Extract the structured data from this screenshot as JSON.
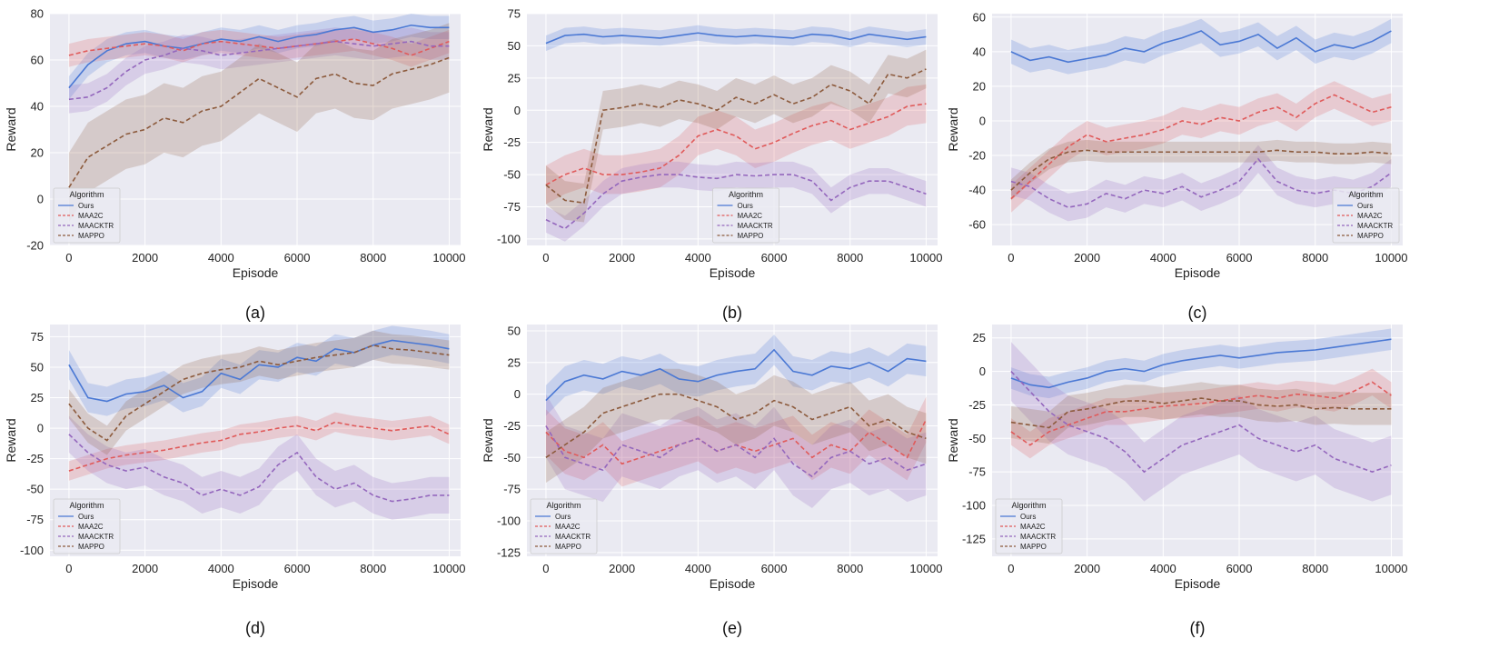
{
  "figure": {
    "panel_labels": [
      "(a)",
      "(b)",
      "(c)",
      "(d)",
      "(e)",
      "(f)"
    ]
  },
  "colors": {
    "Ours": "#4a78d4",
    "MAA2C": "#e05a5a",
    "MAACKTR": "#9467bd",
    "MAPPO": "#8c5a3c",
    "plot_bg": "#eaeaf2",
    "grid": "#ffffff"
  },
  "chart_data": [
    {
      "type": "line",
      "label": "(a)",
      "xlabel": "Episode",
      "ylabel": "Reward",
      "xlim": [
        -500,
        10300
      ],
      "ylim": [
        -20,
        80
      ],
      "xticks": [
        0,
        2000,
        4000,
        6000,
        8000,
        10000
      ],
      "yticks": [
        -20,
        0,
        20,
        40,
        60,
        80
      ],
      "legend": {
        "title": "Algorithm",
        "position": "lower-left"
      },
      "x": [
        0,
        500,
        1000,
        1500,
        2000,
        2500,
        3000,
        3500,
        4000,
        4500,
        5000,
        5500,
        6000,
        6500,
        7000,
        7500,
        8000,
        8500,
        9000,
        9500,
        10000
      ],
      "series": [
        {
          "name": "Ours",
          "style": "solid",
          "band": 5,
          "values": [
            48,
            58,
            64,
            67,
            68,
            66,
            65,
            67,
            69,
            68,
            70,
            68,
            70,
            71,
            73,
            74,
            72,
            73,
            75,
            74,
            74
          ]
        },
        {
          "name": "MAA2C",
          "style": "dashed",
          "band": 5,
          "values": [
            62,
            64,
            65,
            66,
            67,
            66,
            64,
            67,
            68,
            67,
            66,
            65,
            66,
            67,
            68,
            69,
            67,
            65,
            62,
            65,
            68
          ]
        },
        {
          "name": "MAACKTR",
          "style": "dashed",
          "band": 6,
          "values": [
            43,
            44,
            48,
            55,
            60,
            62,
            65,
            64,
            62,
            63,
            64,
            65,
            66,
            67,
            68,
            67,
            66,
            67,
            68,
            66,
            66
          ]
        },
        {
          "name": "MAPPO",
          "style": "dashed",
          "band": 15,
          "values": [
            5,
            18,
            23,
            28,
            30,
            35,
            33,
            38,
            40,
            46,
            52,
            48,
            44,
            52,
            54,
            50,
            49,
            54,
            56,
            58,
            61
          ]
        }
      ]
    },
    {
      "type": "line",
      "label": "(b)",
      "xlabel": "Episode",
      "ylabel": "Reward",
      "xlim": [
        -500,
        10300
      ],
      "ylim": [
        -105,
        75
      ],
      "xticks": [
        0,
        2000,
        4000,
        6000,
        8000,
        10000
      ],
      "yticks": [
        -100,
        -75,
        -50,
        -25,
        0,
        25,
        50,
        75
      ],
      "legend": {
        "title": "Algorithm",
        "position": "lower-center"
      },
      "x": [
        0,
        500,
        1000,
        1500,
        2000,
        2500,
        3000,
        3500,
        4000,
        4500,
        5000,
        5500,
        6000,
        6500,
        7000,
        7500,
        8000,
        8500,
        9000,
        9500,
        10000
      ],
      "series": [
        {
          "name": "Ours",
          "style": "solid",
          "band": 6,
          "values": [
            52,
            58,
            59,
            57,
            58,
            57,
            56,
            58,
            60,
            58,
            57,
            58,
            57,
            56,
            59,
            58,
            55,
            59,
            57,
            55,
            57
          ]
        },
        {
          "name": "MAA2C",
          "style": "dashed",
          "band": 15,
          "values": [
            -58,
            -50,
            -45,
            -50,
            -50,
            -48,
            -45,
            -35,
            -20,
            -15,
            -20,
            -30,
            -25,
            -18,
            -12,
            -8,
            -15,
            -10,
            -5,
            3,
            5
          ]
        },
        {
          "name": "MAACKTR",
          "style": "dashed",
          "band": 10,
          "values": [
            -85,
            -92,
            -80,
            -65,
            -55,
            -52,
            -50,
            -50,
            -52,
            -53,
            -50,
            -51,
            -50,
            -50,
            -55,
            -70,
            -60,
            -55,
            -55,
            -60,
            -65
          ]
        },
        {
          "name": "MAPPO",
          "style": "dashed",
          "band": 15,
          "values": [
            -58,
            -70,
            -72,
            0,
            2,
            5,
            2,
            8,
            5,
            0,
            10,
            5,
            12,
            5,
            10,
            20,
            15,
            5,
            28,
            25,
            32
          ]
        }
      ]
    },
    {
      "type": "line",
      "label": "(c)",
      "xlabel": "Episode",
      "ylabel": "Reward",
      "xlim": [
        -500,
        10300
      ],
      "ylim": [
        -72,
        62
      ],
      "xticks": [
        0,
        2000,
        4000,
        6000,
        8000,
        10000
      ],
      "yticks": [
        -60,
        -40,
        -20,
        0,
        20,
        40,
        60
      ],
      "legend": {
        "title": "Algorithm",
        "position": "lower-right"
      },
      "x": [
        0,
        500,
        1000,
        1500,
        2000,
        2500,
        3000,
        3500,
        4000,
        4500,
        5000,
        5500,
        6000,
        6500,
        7000,
        7500,
        8000,
        8500,
        9000,
        9500,
        10000
      ],
      "series": [
        {
          "name": "Ours",
          "style": "solid",
          "band": 7,
          "values": [
            40,
            35,
            37,
            34,
            36,
            38,
            42,
            40,
            45,
            48,
            52,
            44,
            46,
            50,
            42,
            48,
            40,
            44,
            42,
            46,
            52
          ]
        },
        {
          "name": "MAA2C",
          "style": "dashed",
          "band": 8,
          "values": [
            -45,
            -35,
            -25,
            -15,
            -8,
            -12,
            -10,
            -8,
            -5,
            0,
            -2,
            2,
            0,
            5,
            8,
            2,
            10,
            15,
            10,
            5,
            8
          ]
        },
        {
          "name": "MAACKTR",
          "style": "dashed",
          "band": 8,
          "values": [
            -35,
            -38,
            -45,
            -50,
            -48,
            -42,
            -45,
            -40,
            -42,
            -38,
            -44,
            -40,
            -35,
            -22,
            -35,
            -40,
            -42,
            -40,
            -42,
            -38,
            -30
          ]
        },
        {
          "name": "MAPPO",
          "style": "dashed",
          "band": 6,
          "values": [
            -40,
            -30,
            -22,
            -18,
            -17,
            -18,
            -18,
            -18,
            -18,
            -18,
            -18,
            -18,
            -18,
            -18,
            -17,
            -18,
            -18,
            -19,
            -19,
            -18,
            -19
          ]
        }
      ]
    },
    {
      "type": "line",
      "label": "(d)",
      "xlabel": "Episode",
      "ylabel": "Reward",
      "xlim": [
        -500,
        10300
      ],
      "ylim": [
        -105,
        85
      ],
      "xticks": [
        0,
        2000,
        4000,
        6000,
        8000,
        10000
      ],
      "yticks": [
        -100,
        -75,
        -50,
        -25,
        0,
        25,
        50,
        75
      ],
      "legend": {
        "title": "Algorithm",
        "position": "lower-left"
      },
      "x": [
        0,
        500,
        1000,
        1500,
        2000,
        2500,
        3000,
        3500,
        4000,
        4500,
        5000,
        5500,
        6000,
        6500,
        7000,
        7500,
        8000,
        8500,
        9000,
        9500,
        10000
      ],
      "series": [
        {
          "name": "Ours",
          "style": "solid",
          "band": 12,
          "values": [
            52,
            25,
            22,
            28,
            30,
            35,
            25,
            30,
            45,
            40,
            52,
            50,
            58,
            55,
            65,
            62,
            68,
            72,
            70,
            68,
            65
          ]
        },
        {
          "name": "MAA2C",
          "style": "dashed",
          "band": 8,
          "values": [
            -35,
            -30,
            -25,
            -22,
            -20,
            -18,
            -15,
            -12,
            -10,
            -5,
            -3,
            0,
            2,
            -2,
            5,
            2,
            0,
            -2,
            0,
            2,
            -5
          ]
        },
        {
          "name": "MAACKTR",
          "style": "dashed",
          "band": 15,
          "values": [
            -5,
            -20,
            -30,
            -35,
            -32,
            -40,
            -45,
            -55,
            -50,
            -55,
            -48,
            -30,
            -20,
            -40,
            -50,
            -45,
            -55,
            -60,
            -58,
            -55,
            -55
          ]
        },
        {
          "name": "MAPPO",
          "style": "dashed",
          "band": 12,
          "values": [
            20,
            0,
            -10,
            10,
            20,
            30,
            40,
            45,
            48,
            50,
            55,
            52,
            55,
            58,
            60,
            62,
            68,
            65,
            64,
            62,
            60
          ]
        }
      ]
    },
    {
      "type": "line",
      "label": "(e)",
      "xlabel": "Episode",
      "ylabel": "Reward",
      "xlim": [
        -500,
        10300
      ],
      "ylim": [
        -128,
        55
      ],
      "xticks": [
        0,
        2000,
        4000,
        6000,
        8000,
        10000
      ],
      "yticks": [
        -125,
        -100,
        -75,
        -50,
        -25,
        0,
        25,
        50
      ],
      "legend": {
        "title": "Algorithm",
        "position": "lower-left"
      },
      "x": [
        0,
        500,
        1000,
        1500,
        2000,
        2500,
        3000,
        3500,
        4000,
        4500,
        5000,
        5500,
        6000,
        6500,
        7000,
        7500,
        8000,
        8500,
        9000,
        9500,
        10000
      ],
      "series": [
        {
          "name": "Ours",
          "style": "solid",
          "band": 12,
          "values": [
            -5,
            10,
            15,
            12,
            18,
            15,
            20,
            12,
            10,
            15,
            18,
            20,
            35,
            18,
            15,
            22,
            20,
            25,
            18,
            28,
            26
          ]
        },
        {
          "name": "MAA2C",
          "style": "dashed",
          "band": 18,
          "values": [
            -30,
            -45,
            -50,
            -40,
            -55,
            -50,
            -45,
            -40,
            -35,
            -45,
            -40,
            -45,
            -40,
            -35,
            -50,
            -40,
            -45,
            -30,
            -40,
            -50,
            -20
          ]
        },
        {
          "name": "MAACKTR",
          "style": "dashed",
          "band": 25,
          "values": [
            -25,
            -50,
            -55,
            -60,
            -40,
            -45,
            -50,
            -40,
            -35,
            -45,
            -40,
            -50,
            -35,
            -55,
            -65,
            -50,
            -45,
            -55,
            -50,
            -60,
            -55
          ]
        },
        {
          "name": "MAPPO",
          "style": "dashed",
          "band": 20,
          "values": [
            -50,
            -40,
            -30,
            -15,
            -10,
            -5,
            0,
            0,
            -5,
            -10,
            -20,
            -15,
            -5,
            -10,
            -20,
            -15,
            -10,
            -25,
            -20,
            -30,
            -35
          ]
        }
      ]
    },
    {
      "type": "line",
      "label": "(f)",
      "xlabel": "Episode",
      "ylabel": "Reward",
      "xlim": [
        -500,
        10300
      ],
      "ylim": [
        -138,
        35
      ],
      "xticks": [
        0,
        2000,
        4000,
        6000,
        8000,
        10000
      ],
      "yticks": [
        -125,
        -100,
        -75,
        -50,
        -25,
        0,
        25
      ],
      "legend": {
        "title": "Algorithm",
        "position": "lower-left"
      },
      "x": [
        0,
        500,
        1000,
        1500,
        2000,
        2500,
        3000,
        3500,
        4000,
        4500,
        5000,
        5500,
        6000,
        6500,
        7000,
        7500,
        8000,
        8500,
        9000,
        9500,
        10000
      ],
      "series": [
        {
          "name": "Ours",
          "style": "solid",
          "band": 8,
          "values": [
            -5,
            -10,
            -12,
            -8,
            -5,
            0,
            2,
            0,
            5,
            8,
            10,
            12,
            10,
            12,
            14,
            15,
            16,
            18,
            20,
            22,
            24
          ]
        },
        {
          "name": "MAA2C",
          "style": "dashed",
          "band": 10,
          "values": [
            -45,
            -55,
            -45,
            -40,
            -35,
            -30,
            -30,
            -28,
            -26,
            -25,
            -24,
            -22,
            -20,
            -18,
            -20,
            -17,
            -18,
            -20,
            -15,
            -8,
            -18
          ]
        },
        {
          "name": "MAACKTR",
          "style": "dashed",
          "band": 22,
          "values": [
            0,
            -15,
            -30,
            -40,
            -45,
            -50,
            -60,
            -75,
            -65,
            -55,
            -50,
            -45,
            -40,
            -50,
            -55,
            -60,
            -55,
            -65,
            -70,
            -75,
            -70
          ]
        },
        {
          "name": "MAPPO",
          "style": "dashed",
          "band": 12,
          "values": [
            -38,
            -40,
            -42,
            -30,
            -28,
            -25,
            -22,
            -22,
            -24,
            -22,
            -20,
            -22,
            -22,
            -25,
            -26,
            -25,
            -28,
            -27,
            -28,
            -28,
            -28
          ]
        }
      ]
    }
  ]
}
